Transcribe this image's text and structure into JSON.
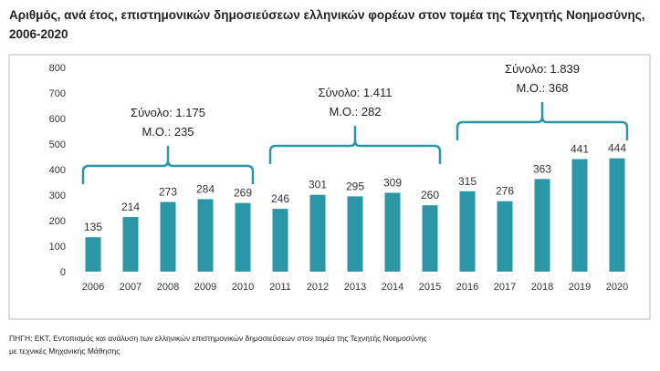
{
  "title": "Αριθμός, ανά έτος, επιστημονικών δημοσιεύσεων ελληνικών φορέων στον τομέα της Τεχνητής Νοημοσύνης, 2006-2020",
  "source_line1": "ΠΗΓΗ: ΕΚΤ, Εντοπισμός και ανάλυση των ελληνικών επιστημονικών δημοσιεύσεων στον τομέα της Τεχνητής Νοημοσύνης",
  "source_line2": "με τεχνικές Μηχανικής Μάθησης",
  "chart_data": {
    "type": "bar",
    "title": "Αριθμός, ανά έτος, επιστημονικών δημοσιεύσεων ελληνικών φορέων στον τομέα της Τεχνητής Νοημοσύνης, 2006-2020",
    "categories": [
      "2006",
      "2007",
      "2008",
      "2009",
      "2010",
      "2011",
      "2012",
      "2013",
      "2014",
      "2015",
      "2016",
      "2017",
      "2018",
      "2019",
      "2020"
    ],
    "values": [
      135,
      214,
      273,
      284,
      269,
      246,
      301,
      295,
      309,
      260,
      315,
      276,
      363,
      441,
      444
    ],
    "ylim": [
      0,
      800
    ],
    "yticks": [
      0,
      100,
      200,
      300,
      400,
      500,
      600,
      700,
      800
    ],
    "grid": false,
    "bar_color": "#2b97a6",
    "groups": [
      {
        "from": "2006",
        "to": "2010",
        "total": "Σύνολο: 1.175",
        "avg": "Μ.Ο.: 235"
      },
      {
        "from": "2011",
        "to": "2015",
        "total": "Σύνολο: 1.411",
        "avg": "Μ.Ο.: 282"
      },
      {
        "from": "2016",
        "to": "2020",
        "total": "Σύνολο: 1.839",
        "avg": "Μ.Ο.: 368"
      }
    ]
  }
}
